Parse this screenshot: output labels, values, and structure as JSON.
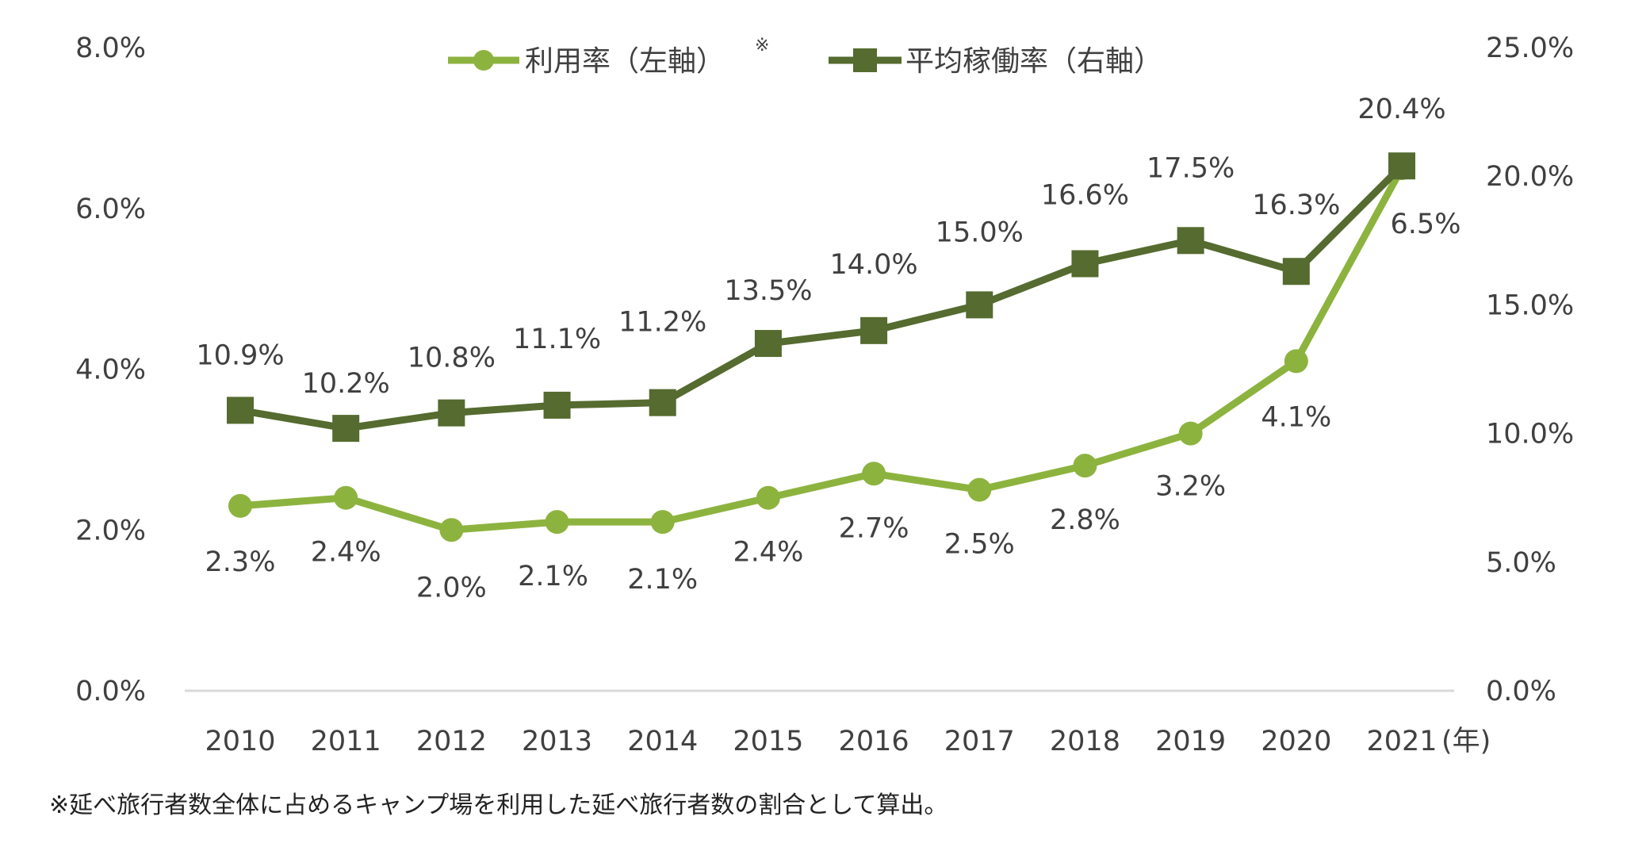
{
  "chart_data": {
    "type": "line",
    "categories": [
      "2010",
      "2011",
      "2012",
      "2013",
      "2014",
      "2015",
      "2016",
      "2017",
      "2018",
      "2019",
      "2020",
      "2021"
    ],
    "x_unit_label": "(年)",
    "left_axis": {
      "ylim": [
        0,
        8
      ],
      "ticks": [
        "0.0%",
        "2.0%",
        "4.0%",
        "6.0%",
        "8.0%"
      ]
    },
    "right_axis": {
      "ylim": [
        0,
        25
      ],
      "ticks": [
        "0.0%",
        "5.0%",
        "10.0%",
        "15.0%",
        "20.0%",
        "25.0%"
      ]
    },
    "grid": false,
    "legend_position": "top",
    "series": [
      {
        "name": "利用率（左軸）",
        "name_mark": "※",
        "axis": "left",
        "marker": "circle",
        "color": "#8db33f",
        "values": [
          2.3,
          2.4,
          2.0,
          2.1,
          2.1,
          2.4,
          2.7,
          2.5,
          2.8,
          3.2,
          4.1,
          6.5
        ],
        "labels": [
          "2.3%",
          "2.4%",
          "2.0%",
          "2.1%",
          "2.1%",
          "2.4%",
          "2.7%",
          "2.5%",
          "2.8%",
          "3.2%",
          "4.1%",
          "6.5%"
        ]
      },
      {
        "name": "平均稼働率（右軸）",
        "axis": "right",
        "marker": "square",
        "color": "#556b2f",
        "values": [
          10.9,
          10.2,
          10.8,
          11.1,
          11.2,
          13.5,
          14.0,
          15.0,
          16.6,
          17.5,
          16.3,
          20.4
        ],
        "labels": [
          "10.9%",
          "10.2%",
          "10.8%",
          "11.1%",
          "11.2%",
          "13.5%",
          "14.0%",
          "15.0%",
          "16.6%",
          "17.5%",
          "16.3%",
          "20.4%"
        ]
      }
    ],
    "axis_line_color": "#d9d9d9"
  },
  "footnote": "※延べ旅行者数全体に占めるキャンプ場を利用した延べ旅行者数の割合として算出。"
}
